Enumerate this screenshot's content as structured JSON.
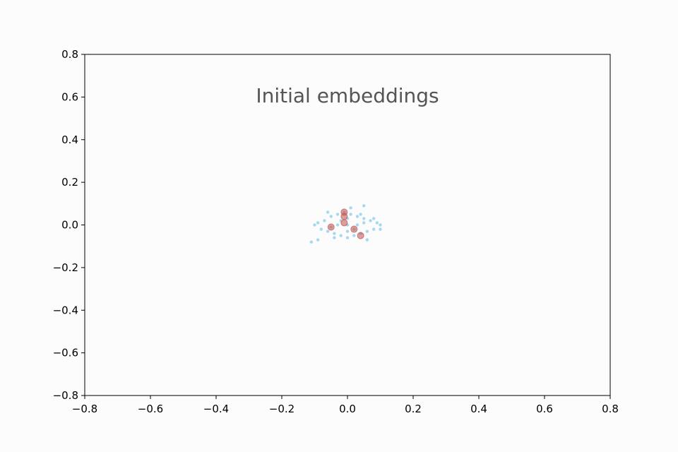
{
  "chart_data": {
    "type": "scatter",
    "title": "Initial embeddings",
    "xlabel": "",
    "ylabel": "",
    "xlim": [
      -0.8,
      0.8
    ],
    "ylim": [
      -0.8,
      0.8
    ],
    "x_ticks": [
      "−0.8",
      "−0.6",
      "−0.4",
      "−0.2",
      "0.0",
      "0.2",
      "0.4",
      "0.6",
      "0.8"
    ],
    "y_ticks": [
      "0.8",
      "0.6",
      "0.4",
      "0.2",
      "0.0",
      "−0.2",
      "−0.4",
      "−0.6",
      "−0.8"
    ],
    "x_tick_values": [
      -0.8,
      -0.6,
      -0.4,
      -0.2,
      0.0,
      0.2,
      0.4,
      0.6,
      0.8
    ],
    "y_tick_values": [
      0.8,
      0.6,
      0.4,
      0.2,
      0.0,
      -0.2,
      -0.4,
      -0.6,
      -0.8
    ],
    "grid": false,
    "legend": "none",
    "series": [
      {
        "color": "#87ceeb",
        "marker": "small-dot",
        "points": [
          [
            -0.1,
            0.0
          ],
          [
            -0.09,
            0.01
          ],
          [
            -0.08,
            -0.02
          ],
          [
            -0.07,
            0.02
          ],
          [
            -0.06,
            -0.03
          ],
          [
            -0.05,
            0.04
          ],
          [
            -0.04,
            -0.04
          ],
          [
            -0.03,
            0.05
          ],
          [
            -0.02,
            -0.05
          ],
          [
            -0.01,
            0.06
          ],
          [
            0.0,
            -0.06
          ],
          [
            0.01,
            0.05
          ],
          [
            0.02,
            -0.05
          ],
          [
            0.03,
            0.04
          ],
          [
            0.04,
            -0.04
          ],
          [
            0.05,
            0.03
          ],
          [
            0.06,
            -0.03
          ],
          [
            0.07,
            0.02
          ],
          [
            0.08,
            -0.02
          ],
          [
            0.09,
            0.01
          ],
          [
            0.1,
            0.0
          ],
          [
            -0.03,
            0.0
          ],
          [
            0.0,
            0.0
          ],
          [
            0.03,
            0.0
          ],
          [
            0.0,
            0.03
          ],
          [
            0.0,
            -0.03
          ],
          [
            -0.05,
            -0.01
          ],
          [
            0.05,
            0.01
          ],
          [
            -0.02,
            0.02
          ],
          [
            0.02,
            -0.02
          ],
          [
            0.01,
            0.08
          ],
          [
            0.05,
            0.09
          ],
          [
            -0.11,
            -0.08
          ],
          [
            -0.09,
            -0.07
          ],
          [
            0.1,
            -0.02
          ],
          [
            0.08,
            0.03
          ],
          [
            -0.06,
            0.06
          ],
          [
            0.06,
            -0.07
          ],
          [
            0.04,
            0.05
          ],
          [
            -0.04,
            -0.06
          ]
        ]
      },
      {
        "color": "#c0504d",
        "marker": "circle",
        "points": [
          [
            -0.05,
            -0.01
          ],
          [
            -0.01,
            0.01
          ],
          [
            -0.01,
            0.06
          ],
          [
            -0.01,
            0.04
          ],
          [
            0.02,
            -0.02
          ],
          [
            0.04,
            -0.05
          ]
        ]
      }
    ]
  }
}
